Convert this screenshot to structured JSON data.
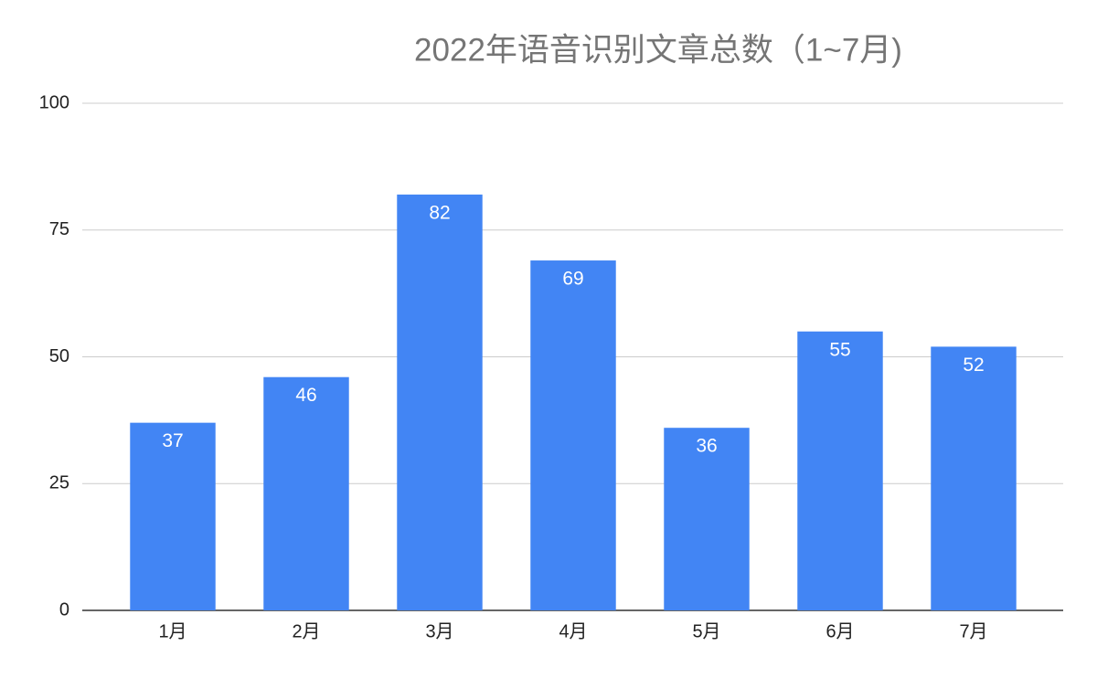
{
  "chart_data": {
    "type": "bar",
    "title": "2022年语音识别文章总数（1~7月)",
    "categories": [
      "1月",
      "2月",
      "3月",
      "4月",
      "5月",
      "6月",
      "7月"
    ],
    "values": [
      37,
      46,
      82,
      69,
      36,
      55,
      52
    ],
    "color": "#4285f4",
    "ylim": [
      0,
      100
    ],
    "yticks": [
      0,
      25,
      50,
      75,
      100
    ],
    "grid": true,
    "data_labels": true
  }
}
